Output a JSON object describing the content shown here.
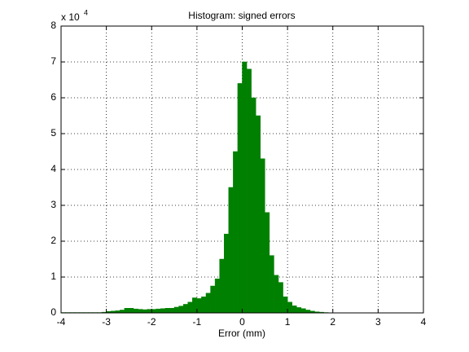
{
  "chart_data": {
    "type": "histogram",
    "title": "Histogram: signed errors",
    "x_label": "Error (mm)",
    "y_scale_base": "x 10",
    "y_scale_exponent": "4",
    "color": "#008000",
    "bins": [
      -4,
      -3.9,
      -3.8,
      -3.7,
      -3.6,
      -3.5,
      -3.4,
      -3.3,
      -3.2,
      -3.1,
      -3,
      -2.9,
      -2.8,
      -2.7,
      -2.6,
      -2.5,
      -2.4,
      -2.3,
      -2.2,
      -2.1,
      -2,
      -1.9,
      -1.8,
      -1.7,
      -1.6,
      -1.5,
      -1.4,
      -1.3,
      -1.2,
      -1.1,
      -1,
      -0.9,
      -0.8,
      -0.7,
      -0.6,
      -0.5,
      -0.4,
      -0.3,
      -0.2,
      -0.1,
      0,
      0.1,
      0.2,
      0.3,
      0.4,
      0.5,
      0.6,
      0.7,
      0.8,
      0.9,
      1,
      1.1,
      1.2,
      1.3,
      1.4,
      1.5,
      1.6,
      1.7,
      1.8,
      1.9,
      2,
      2.1,
      2.2,
      2.3,
      2.4,
      2.5,
      2.6,
      2.7,
      2.8,
      2.9,
      3,
      3.1,
      3.2,
      3.3,
      3.4,
      3.5,
      3.6,
      3.7,
      3.8,
      3.9,
      4
    ],
    "values": [
      0.01,
      0.01,
      0.01,
      0.01,
      0.01,
      0.01,
      0.01,
      0.01,
      0.01,
      0.02,
      0.04,
      0.05,
      0.06,
      0.08,
      0.13,
      0.13,
      0.11,
      0.1,
      0.09,
      0.1,
      0.1,
      0.11,
      0.12,
      0.13,
      0.13,
      0.16,
      0.19,
      0.24,
      0.3,
      0.42,
      0.4,
      0.45,
      0.55,
      0.75,
      0.95,
      1.5,
      2.2,
      3.5,
      4.5,
      6.4,
      7.0,
      6.8,
      6.0,
      5.5,
      4.3,
      2.8,
      1.6,
      1.05,
      0.85,
      0.45,
      0.3,
      0.2,
      0.15,
      0.12,
      0.08,
      0.05,
      0.03,
      0.02,
      0.01,
      0.005,
      0.005,
      0.005,
      0.005,
      0.005,
      0.005,
      0.005,
      0.005,
      0.005,
      0.005,
      0.005,
      0.005,
      0.005,
      0.005,
      0.005,
      0.005,
      0.005,
      0.005,
      0.005,
      0.005,
      0.005
    ],
    "xlim": [
      -4,
      4
    ],
    "xticks": [
      -4,
      -3,
      -2,
      -1,
      0,
      1,
      2,
      3,
      4
    ],
    "ylim": [
      0,
      8
    ],
    "yticks": [
      0,
      1,
      2,
      3,
      4,
      5,
      6,
      7,
      8
    ],
    "grid": true
  }
}
